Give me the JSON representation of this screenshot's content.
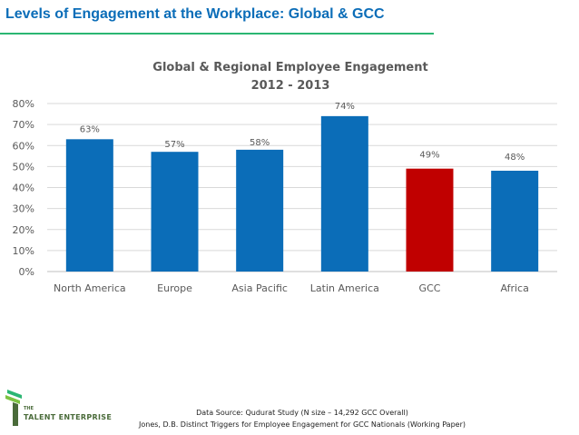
{
  "slide": {
    "title": "Levels of Engagement at the Workplace: Global & GCC",
    "source_line_1": "Data Source: Qudurat Study (N size – 14,292 GCC Overall)",
    "source_line_2": "Jones, D.B. Distinct Triggers for Employee Engagement for GCC Nationals (Working Paper)"
  },
  "logo": {
    "line_1": "THE",
    "line_2": "TALENT ENTERPRISE"
  },
  "colors": {
    "title": "#0b6db8",
    "rule": "#2bb673",
    "bar_default": "#0b6db8",
    "bar_highlight": "#c00000",
    "gridline": "#d9d9d9",
    "text": "#595959"
  },
  "chart_data": {
    "type": "bar",
    "title": "Global & Regional Employee Engagement",
    "subtitle": "2012 - 2013",
    "categories": [
      "North America",
      "Europe",
      "Asia Pacific",
      "Latin America",
      "GCC",
      "Africa"
    ],
    "values": [
      63,
      57,
      58,
      74,
      49,
      48
    ],
    "value_labels": [
      "63%",
      "57%",
      "58%",
      "74%",
      "49%",
      "48%"
    ],
    "highlight": [
      false,
      false,
      false,
      false,
      true,
      false
    ],
    "ylim": [
      0,
      80
    ],
    "yticks": [
      "0%",
      "10%",
      "20%",
      "30%",
      "40%",
      "50%",
      "60%",
      "70%",
      "80%"
    ],
    "xlabel": "",
    "ylabel": "",
    "grid": true
  }
}
